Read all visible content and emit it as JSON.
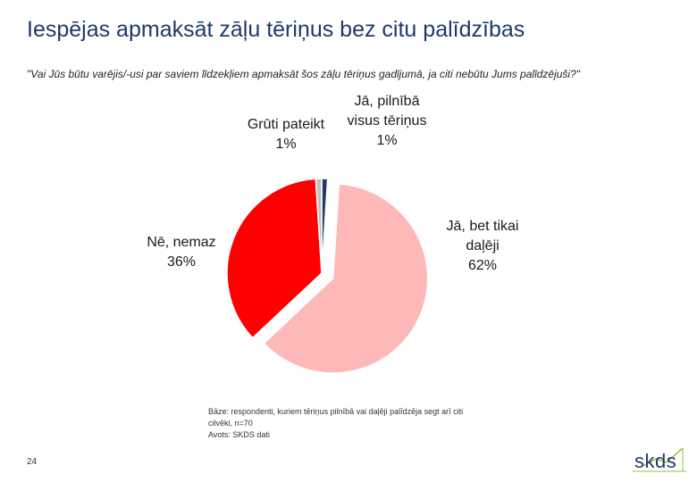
{
  "slide": {
    "title": "Iespējas apmaksāt zāļu tēriņus bez citu palīdzības",
    "question": "\"Vai Jūs būtu varējis/-usi par saviem līdzekļiem apmaksāt šos zāļu tēriņus gadījumā, ja citi nebūtu Jums palīdzējuši?\"",
    "base_note_line1": "Bāze: respondenti, kuriem tēriņus pilnībā vai daļēji palīdzēja segt arī citi",
    "base_note_line2": "cilvēki, n=70",
    "source": "Avots: SKDS dati",
    "page_number": "24",
    "logo_text": "skds"
  },
  "chart_data": {
    "type": "pie",
    "title": "",
    "slices": [
      {
        "label_lines": [
          "Jā, pilnībā",
          "visus tēriņus"
        ],
        "value": 1,
        "value_label": "1%",
        "color": "#1f3a6b",
        "exploded": false
      },
      {
        "label_lines": [
          "Jā, bet tikai",
          "daļēji"
        ],
        "value": 62,
        "value_label": "62%",
        "color": "#ffb8b8",
        "exploded": true
      },
      {
        "label_lines": [
          "Nē, nemaz"
        ],
        "value": 36,
        "value_label": "36%",
        "color": "#ff0000",
        "exploded": false
      },
      {
        "label_lines": [
          "Grūti pateikt"
        ],
        "value": 1,
        "value_label": "1%",
        "color": "#c0c0c0",
        "exploded": false
      }
    ],
    "start": "12 o'clock",
    "direction": "clockwise"
  }
}
